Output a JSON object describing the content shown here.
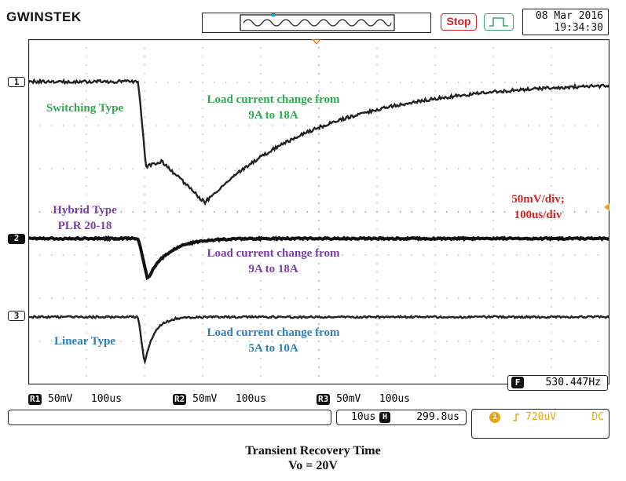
{
  "header": {
    "brand": "GWINSTEK",
    "stop_label": "Stop",
    "date": "08 Mar 2016",
    "time": "19:34:30"
  },
  "colors": {
    "ch1_label": "#2fa84f",
    "ch2_label": "#7b3ea8",
    "ch3_label": "#2c7fbf",
    "scale_label": "#e0201c",
    "stop": "#d22222",
    "trigger_icon": "#3aa96a",
    "trigger_level": "#e8a317"
  },
  "channels": {
    "markers": [
      "1",
      "2",
      "3"
    ],
    "ch1": {
      "name": "Switching Type",
      "desc_line1": "Load current change from",
      "desc_line2": "9A to 18A"
    },
    "ch2": {
      "name_line1": "Hybrid Type",
      "name_line2": "PLR 20-18",
      "desc_line1": "Load current change from",
      "desc_line2": "9A to 18A"
    },
    "ch3": {
      "name": "Linear Type",
      "desc_line1": "Load current change from",
      "desc_line2": "5A to 10A"
    }
  },
  "scale": {
    "line1": "50mV/div;",
    "line2": "100us/div"
  },
  "frequency": {
    "icon": "F",
    "value": "530.447Hz"
  },
  "channel_settings": [
    {
      "tag": "R1",
      "volts": "50mV",
      "time": "100us"
    },
    {
      "tag": "R2",
      "volts": "50mV",
      "time": "100us"
    },
    {
      "tag": "R3",
      "volts": "50mV",
      "time": "100us"
    }
  ],
  "timebase": {
    "scale": "10us",
    "icon": "H",
    "position": "299.8us"
  },
  "trigger": {
    "level": "720uV",
    "coupling": "DC",
    "source_icon": "1"
  },
  "caption": {
    "line1": "Transient Recovery Time",
    "line2": "Vo = 20V"
  }
}
